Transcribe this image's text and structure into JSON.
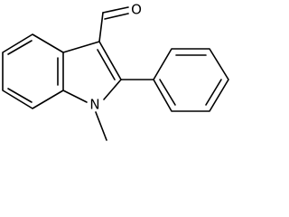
{
  "atoms": {
    "oxygen": "O",
    "nitrogen": "N"
  }
}
